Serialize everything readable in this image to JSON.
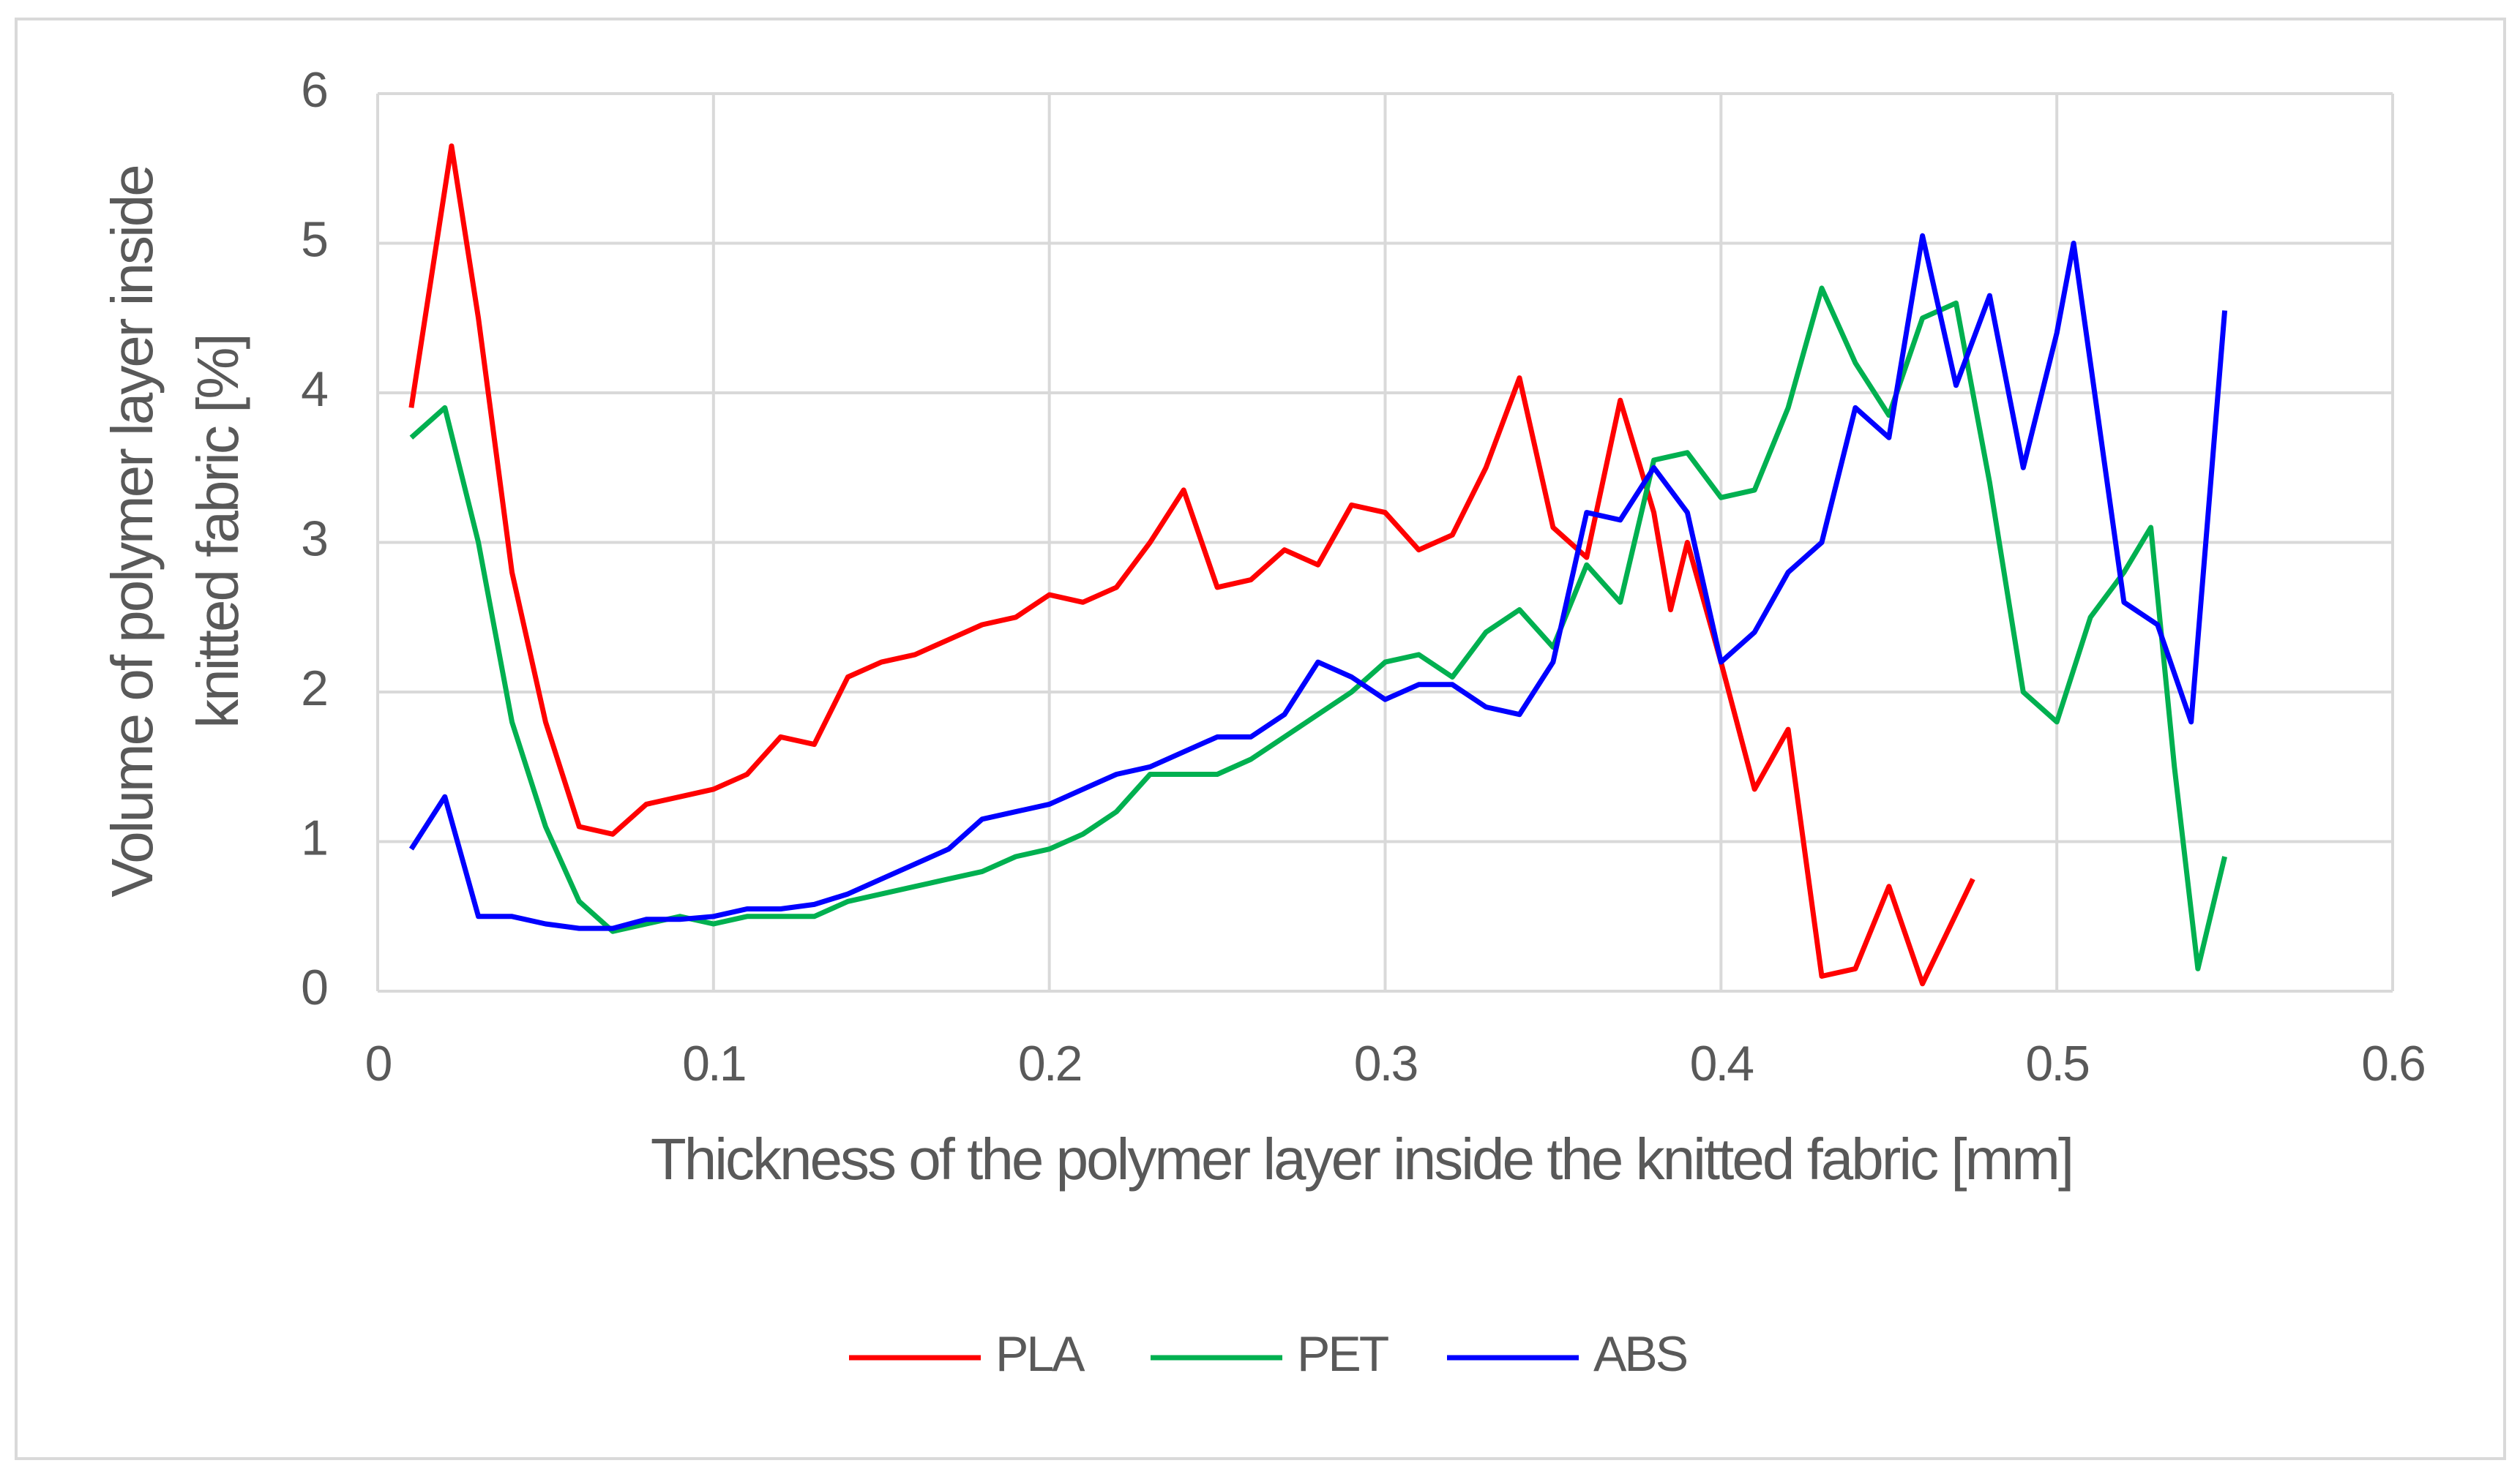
{
  "chart_data": {
    "type": "line",
    "xlabel": "Thickness of the polymer layer inside the knitted fabric [mm]",
    "ylabel": [
      "Volume of polymer layer inside",
      "knitted fabric [%]"
    ],
    "xlim": [
      0,
      0.6
    ],
    "xticks": [
      0,
      0.1,
      0.2,
      0.3,
      0.4,
      0.5,
      0.6
    ],
    "ylim": [
      0,
      6
    ],
    "yticks": [
      0,
      1,
      2,
      3,
      4,
      5,
      6
    ],
    "grid": true,
    "legend": "bottom",
    "series": [
      {
        "name": "PLA",
        "color": "#ff0000",
        "x": [
          0.01,
          0.022,
          0.03,
          0.04,
          0.05,
          0.06,
          0.07,
          0.08,
          0.09,
          0.1,
          0.11,
          0.12,
          0.13,
          0.14,
          0.15,
          0.16,
          0.17,
          0.18,
          0.19,
          0.2,
          0.21,
          0.22,
          0.23,
          0.24,
          0.25,
          0.26,
          0.27,
          0.28,
          0.29,
          0.3,
          0.31,
          0.32,
          0.33,
          0.34,
          0.35,
          0.36,
          0.37,
          0.38,
          0.385,
          0.39,
          0.4,
          0.41,
          0.42,
          0.43,
          0.44,
          0.45,
          0.46,
          0.475
        ],
        "values": [
          3.9,
          5.65,
          4.5,
          2.8,
          1.8,
          1.1,
          1.05,
          1.25,
          1.3,
          1.35,
          1.45,
          1.7,
          1.65,
          2.1,
          2.2,
          2.25,
          2.35,
          2.45,
          2.5,
          2.65,
          2.6,
          2.7,
          3.0,
          3.35,
          2.7,
          2.75,
          2.95,
          2.85,
          3.25,
          3.2,
          2.95,
          3.05,
          3.5,
          4.1,
          3.1,
          2.9,
          3.95,
          3.2,
          2.55,
          3.0,
          2.2,
          1.35,
          1.75,
          0.1,
          0.15,
          0.7,
          0.05,
          0.75
        ]
      },
      {
        "name": "PET",
        "color": "#00b050",
        "x": [
          0.01,
          0.02,
          0.03,
          0.04,
          0.05,
          0.06,
          0.07,
          0.08,
          0.09,
          0.1,
          0.11,
          0.12,
          0.13,
          0.14,
          0.15,
          0.16,
          0.17,
          0.18,
          0.19,
          0.2,
          0.21,
          0.22,
          0.23,
          0.24,
          0.25,
          0.26,
          0.27,
          0.28,
          0.29,
          0.3,
          0.31,
          0.32,
          0.33,
          0.34,
          0.35,
          0.36,
          0.37,
          0.38,
          0.39,
          0.4,
          0.41,
          0.42,
          0.43,
          0.44,
          0.45,
          0.46,
          0.47,
          0.48,
          0.49,
          0.5,
          0.51,
          0.52,
          0.528,
          0.535,
          0.542,
          0.55
        ],
        "values": [
          3.7,
          3.9,
          3.0,
          1.8,
          1.1,
          0.6,
          0.4,
          0.45,
          0.5,
          0.45,
          0.5,
          0.5,
          0.5,
          0.6,
          0.65,
          0.7,
          0.75,
          0.8,
          0.9,
          0.95,
          1.05,
          1.2,
          1.45,
          1.45,
          1.45,
          1.55,
          1.7,
          1.85,
          2.0,
          2.2,
          2.25,
          2.1,
          2.4,
          2.55,
          2.3,
          2.85,
          2.6,
          3.55,
          3.6,
          3.3,
          3.35,
          3.9,
          4.7,
          4.2,
          3.85,
          4.5,
          4.6,
          3.4,
          2.0,
          1.8,
          2.5,
          2.8,
          3.1,
          1.5,
          0.15,
          0.9
        ]
      },
      {
        "name": "ABS",
        "color": "#0000ff",
        "x": [
          0.01,
          0.02,
          0.03,
          0.04,
          0.05,
          0.06,
          0.07,
          0.08,
          0.09,
          0.1,
          0.11,
          0.12,
          0.13,
          0.14,
          0.15,
          0.16,
          0.17,
          0.18,
          0.19,
          0.2,
          0.21,
          0.22,
          0.23,
          0.24,
          0.25,
          0.26,
          0.27,
          0.28,
          0.29,
          0.3,
          0.31,
          0.32,
          0.33,
          0.34,
          0.35,
          0.36,
          0.37,
          0.38,
          0.39,
          0.4,
          0.41,
          0.42,
          0.43,
          0.44,
          0.45,
          0.46,
          0.47,
          0.48,
          0.49,
          0.5,
          0.505,
          0.51,
          0.52,
          0.53,
          0.54,
          0.55
        ],
        "values": [
          0.95,
          1.3,
          0.5,
          0.5,
          0.45,
          0.42,
          0.42,
          0.48,
          0.48,
          0.5,
          0.55,
          0.55,
          0.58,
          0.65,
          0.75,
          0.85,
          0.95,
          1.15,
          1.2,
          1.25,
          1.35,
          1.45,
          1.5,
          1.6,
          1.7,
          1.7,
          1.85,
          2.2,
          2.1,
          1.95,
          2.05,
          2.05,
          1.9,
          1.85,
          2.2,
          3.2,
          3.15,
          3.5,
          3.2,
          2.2,
          2.4,
          2.8,
          3.0,
          3.9,
          3.7,
          5.05,
          4.05,
          4.65,
          3.5,
          4.4,
          5.0,
          4.2,
          2.6,
          2.45,
          1.8,
          4.55
        ]
      }
    ]
  }
}
